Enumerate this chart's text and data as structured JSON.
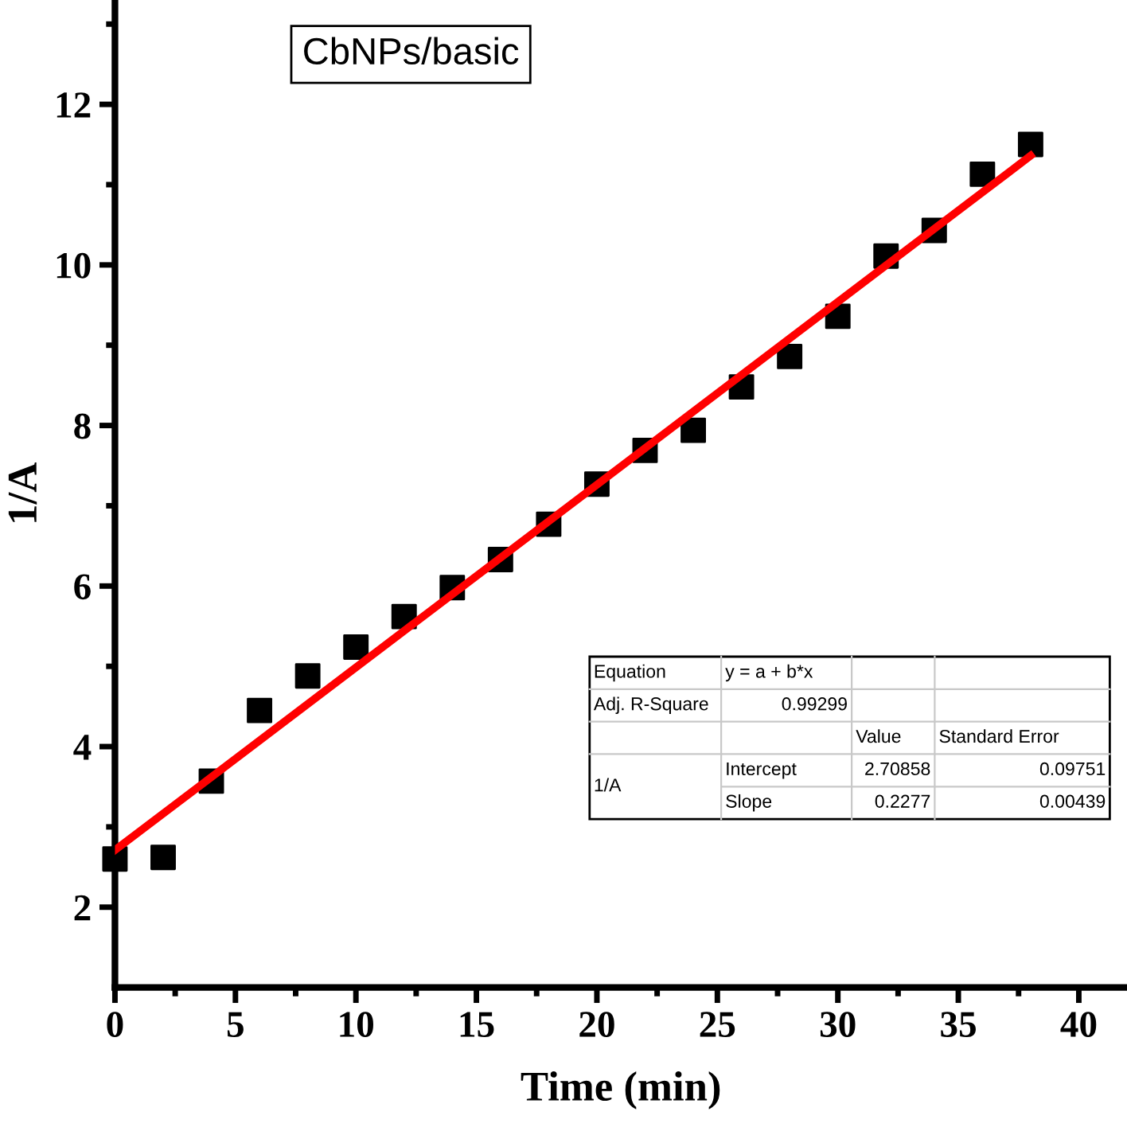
{
  "chart_data": {
    "type": "scatter",
    "xlabel": "Time (min)",
    "ylabel": "1/A",
    "xlim": [
      0,
      42
    ],
    "ylim": [
      1,
      13.3
    ],
    "xticks": [
      0,
      5,
      10,
      15,
      20,
      25,
      30,
      35,
      40
    ],
    "yticks": [
      2,
      4,
      6,
      8,
      10,
      12
    ],
    "grid": false,
    "legend": false,
    "marker": "square",
    "series": [
      {
        "color": "#000000",
        "x": [
          0,
          2,
          4,
          6,
          8,
          10,
          12,
          14,
          16,
          18,
          20,
          22,
          24,
          26,
          28,
          30,
          32,
          34,
          36,
          38
        ],
        "values": [
          2.6,
          2.62,
          3.57,
          4.45,
          4.88,
          5.24,
          5.62,
          5.98,
          6.33,
          6.77,
          7.27,
          7.69,
          7.94,
          8.48,
          8.86,
          9.36,
          10.11,
          10.43,
          11.13,
          11.5
        ]
      },
      {
        "type": "line",
        "color": "#ff0000",
        "x": [
          0,
          38
        ],
        "values": [
          2.71,
          11.36
        ],
        "line_style": "solid",
        "marker": "none"
      }
    ],
    "annotations": [
      "CbNPs/basic",
      "Equation",
      "y = a + b*x",
      "Adj. R-Square",
      "0.99299",
      "Value",
      "Standard Error",
      "1/A",
      "Intercept",
      "2.70858",
      "0.09751",
      "Slope",
      "0.2277",
      "0.00439"
    ]
  }
}
